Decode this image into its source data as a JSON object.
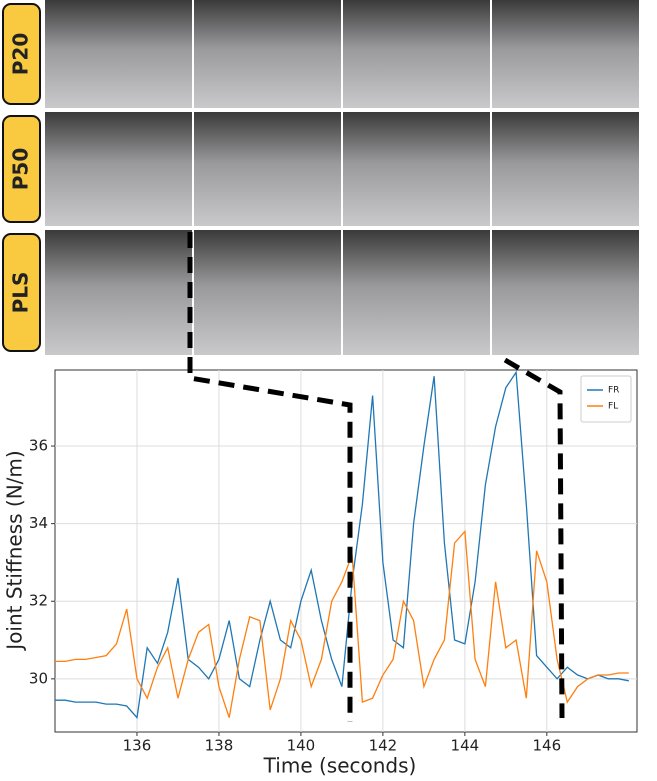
{
  "photo_rows": [
    "P20",
    "P50",
    "PLS"
  ],
  "chart_data": {
    "type": "line",
    "x_label": "Time (seconds)",
    "y_label": "Joint Stiffness (N/m)",
    "x": [
      134,
      134.25,
      134.5,
      134.75,
      135,
      135.25,
      135.5,
      135.75,
      136,
      136.25,
      136.5,
      136.75,
      137,
      137.25,
      137.5,
      137.75,
      138,
      138.25,
      138.5,
      138.75,
      139,
      139.25,
      139.5,
      139.75,
      140,
      140.25,
      140.5,
      140.75,
      141,
      141.25,
      141.5,
      141.75,
      142,
      142.25,
      142.5,
      142.75,
      143,
      143.25,
      143.5,
      143.75,
      144,
      144.25,
      144.5,
      144.75,
      145,
      145.25,
      145.5,
      145.75,
      146,
      146.25,
      146.5,
      146.75,
      147,
      147.25,
      147.5,
      147.75,
      148
    ],
    "series": [
      {
        "name": "FR",
        "color": "#1f77b4",
        "values": [
          29.45,
          29.45,
          29.4,
          29.4,
          29.4,
          29.35,
          29.35,
          29.3,
          29.0,
          30.8,
          30.4,
          31.2,
          32.6,
          30.5,
          30.3,
          30.0,
          30.5,
          31.5,
          30.0,
          29.8,
          31.0,
          32.0,
          31.0,
          30.8,
          32.0,
          32.8,
          31.5,
          30.5,
          29.8,
          32.5,
          34.5,
          37.3,
          33.0,
          31.0,
          30.8,
          34.0,
          36.0,
          37.8,
          33.5,
          31.0,
          30.9,
          32.5,
          35.0,
          36.5,
          37.5,
          37.9,
          34.5,
          30.6,
          30.3,
          30.0,
          30.3,
          30.1,
          30.0,
          30.1,
          30.0,
          30.0,
          29.95
        ]
      },
      {
        "name": "FL",
        "color": "#ff7f0e",
        "values": [
          30.45,
          30.45,
          30.5,
          30.5,
          30.55,
          30.6,
          30.9,
          31.8,
          30.0,
          29.5,
          30.3,
          30.8,
          29.5,
          30.5,
          31.2,
          31.4,
          29.8,
          29.0,
          30.5,
          31.6,
          31.5,
          29.2,
          30.0,
          31.5,
          31.0,
          29.8,
          30.5,
          32.0,
          32.5,
          33.2,
          29.4,
          29.5,
          30.1,
          30.5,
          32.0,
          31.5,
          29.8,
          30.5,
          31.0,
          33.5,
          33.8,
          30.5,
          29.8,
          32.5,
          30.8,
          31.0,
          29.5,
          33.3,
          32.5,
          30.5,
          29.4,
          29.8,
          30.0,
          30.1,
          30.1,
          30.15,
          30.15
        ]
      }
    ],
    "xlim": [
      134,
      148.2
    ],
    "ylim": [
      28.63,
      37.96
    ],
    "xticks": [
      136,
      138,
      140,
      142,
      144,
      146
    ],
    "yticks": [
      30,
      32,
      34,
      36
    ],
    "grid": true,
    "legend": "upper right"
  }
}
